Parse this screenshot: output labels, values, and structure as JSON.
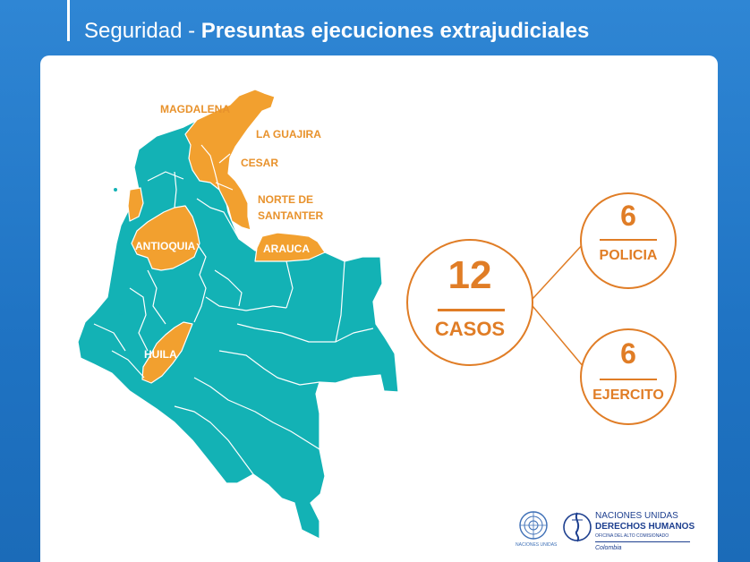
{
  "header": {
    "title_prefix": "Seguridad - ",
    "title_main": "Presuntas ejecuciones extrajudiciales"
  },
  "map": {
    "labels_outside": [
      "MAGDALENA",
      "LA GUAJIRA",
      "CESAR",
      "NORTE DE",
      "SANTANTER"
    ],
    "labels_inside": [
      "ANTIOQUIA",
      "ARAUCA",
      "HUILA"
    ],
    "colors": {
      "highlight": "#f2a02f",
      "base": "#13b2b5",
      "border": "#ffffff"
    }
  },
  "stats": {
    "total": {
      "value": "12",
      "label": "CASOS"
    },
    "breakdown": [
      {
        "value": "6",
        "label": "POLICIA"
      },
      {
        "value": "6",
        "label": "EJERCITO"
      }
    ],
    "accent_color": "#e07d26"
  },
  "logos": {
    "un_caption": "NACIONES UNIDAS",
    "ohchr_line1": "NACIONES UNIDAS",
    "ohchr_line2": "DERECHOS HUMANOS",
    "ohchr_line3": "OFICINA DEL ALTO COMISIONADO",
    "ohchr_line4": "Colombia"
  }
}
